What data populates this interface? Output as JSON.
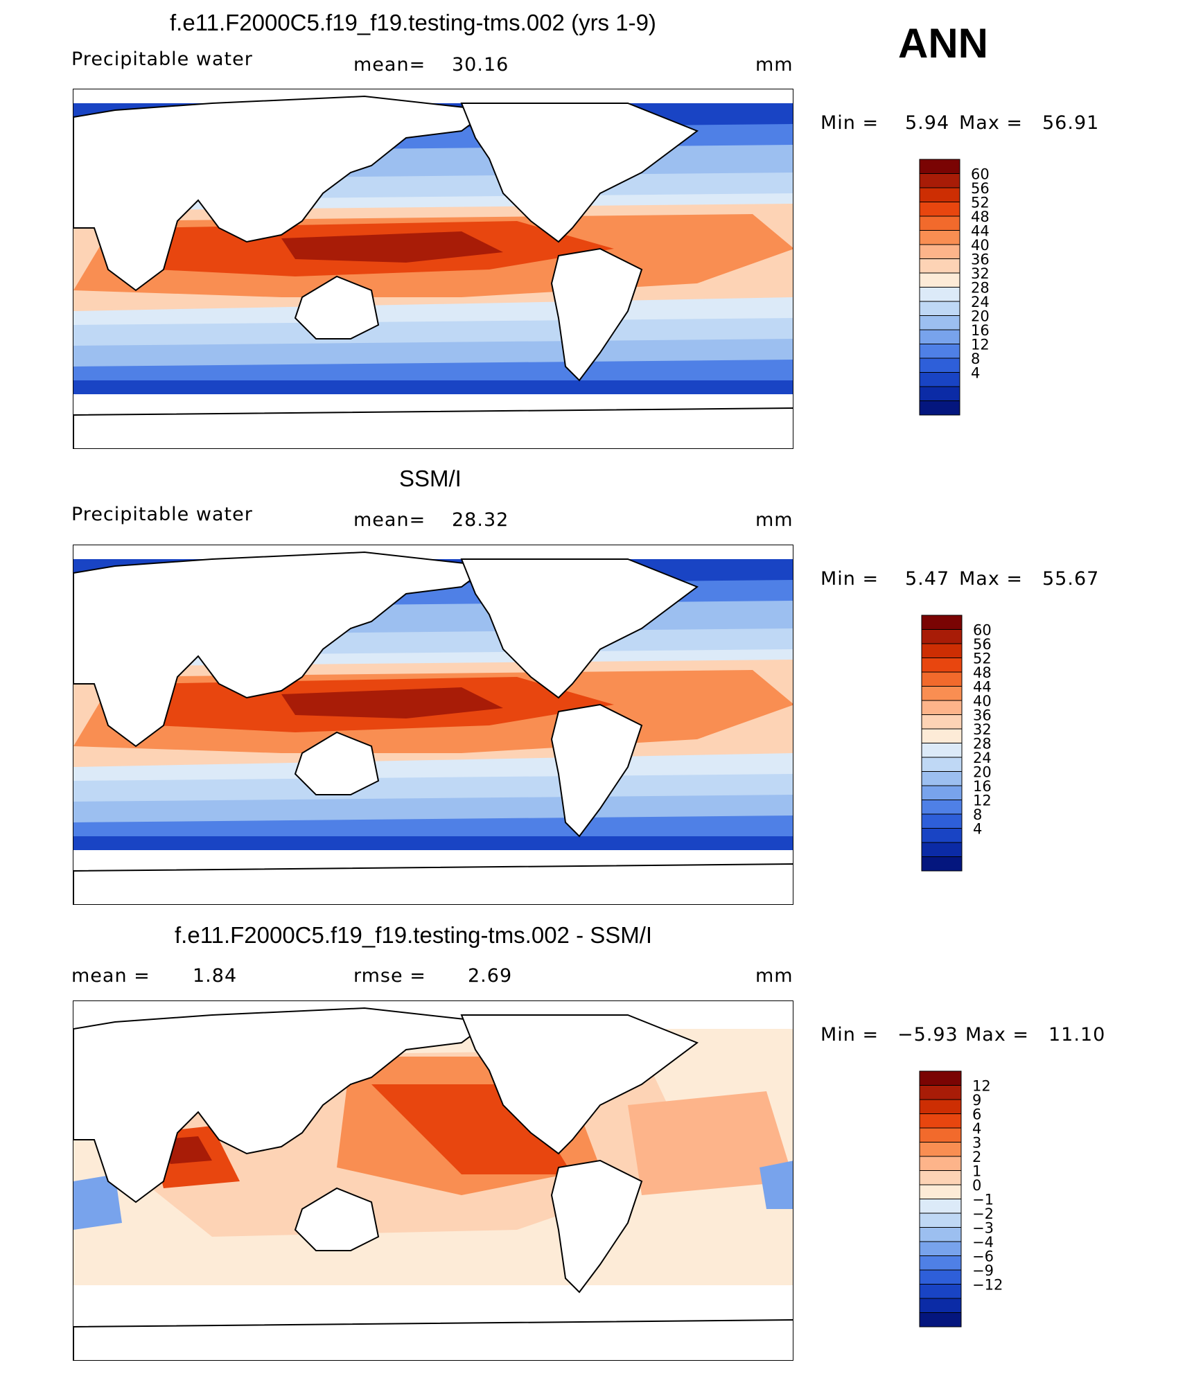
{
  "season": "ANN",
  "panels": [
    {
      "title": "f.e11.F2000C5.f19_f19.testing-tms.002 (yrs 1-9)",
      "left_label": "Precipitable water",
      "center_key": "mean=",
      "center_value": "30.16",
      "units": "mm",
      "min_label": "Min =",
      "min_value": "5.94",
      "max_label": "Max =",
      "max_value": "56.91"
    },
    {
      "title": "SSM/I",
      "left_label": "Precipitable water",
      "center_key": "mean=",
      "center_value": "28.32",
      "units": "mm",
      "min_label": "Min =",
      "min_value": "5.47",
      "max_label": "Max =",
      "max_value": "55.67"
    },
    {
      "title": "f.e11.F2000C5.f19_f19.testing-tms.002 - SSM/I",
      "left_label": "mean =",
      "left_value": "1.84",
      "center_key": "rmse =",
      "center_value": "2.69",
      "units": "mm",
      "min_label": "Min =",
      "min_value": "−5.93",
      "max_label": "Max =",
      "max_value": "11.10"
    }
  ],
  "chart_data": [
    {
      "type": "heatmap",
      "title": "f.e11.F2000C5.f19_f19.testing-tms.002 (yrs 1-9)",
      "variable": "Precipitable water",
      "units": "mm",
      "mean": 30.16,
      "min": 5.94,
      "max": 56.91,
      "colorbar_levels": [
        "60",
        "56",
        "52",
        "48",
        "44",
        "40",
        "36",
        "32",
        "28",
        "24",
        "20",
        "16",
        "12",
        "8",
        "4"
      ],
      "colors": [
        "#7a0403",
        "#a81c07",
        "#cd2e03",
        "#e8460f",
        "#f26a2c",
        "#f98e52",
        "#fdb48a",
        "#fdd3b5",
        "#fdebd7",
        "#dceaf8",
        "#bfd8f5",
        "#9cbff0",
        "#78a3ec",
        "#4f80e6",
        "#2e5fd9",
        "#1944c4",
        "#0b2ba6",
        "#04167e"
      ]
    },
    {
      "type": "heatmap",
      "title": "SSM/I",
      "variable": "Precipitable water",
      "units": "mm",
      "mean": 28.32,
      "min": 5.47,
      "max": 55.67,
      "colorbar_levels": [
        "60",
        "56",
        "52",
        "48",
        "44",
        "40",
        "36",
        "32",
        "28",
        "24",
        "20",
        "16",
        "12",
        "8",
        "4"
      ]
    },
    {
      "type": "heatmap",
      "title": "f.e11.F2000C5.f19_f19.testing-tms.002 - SSM/I",
      "units": "mm",
      "mean": 1.84,
      "rmse": 2.69,
      "min": -5.93,
      "max": 11.1,
      "colorbar_levels": [
        "12",
        "9",
        "6",
        "4",
        "3",
        "2",
        "1",
        "0",
        "−1",
        "−2",
        "−3",
        "−4",
        "−6",
        "−9",
        "−12"
      ],
      "colors": [
        "#7a0403",
        "#a81c07",
        "#cd2e03",
        "#e8460f",
        "#f26a2c",
        "#f98e52",
        "#fdb48a",
        "#fdd3b5",
        "#fdebd7",
        "#dceaf8",
        "#bfd8f5",
        "#9cbff0",
        "#78a3ec",
        "#4f80e6",
        "#2e5fd9",
        "#1944c4",
        "#0b2ba6",
        "#04167e"
      ]
    }
  ]
}
